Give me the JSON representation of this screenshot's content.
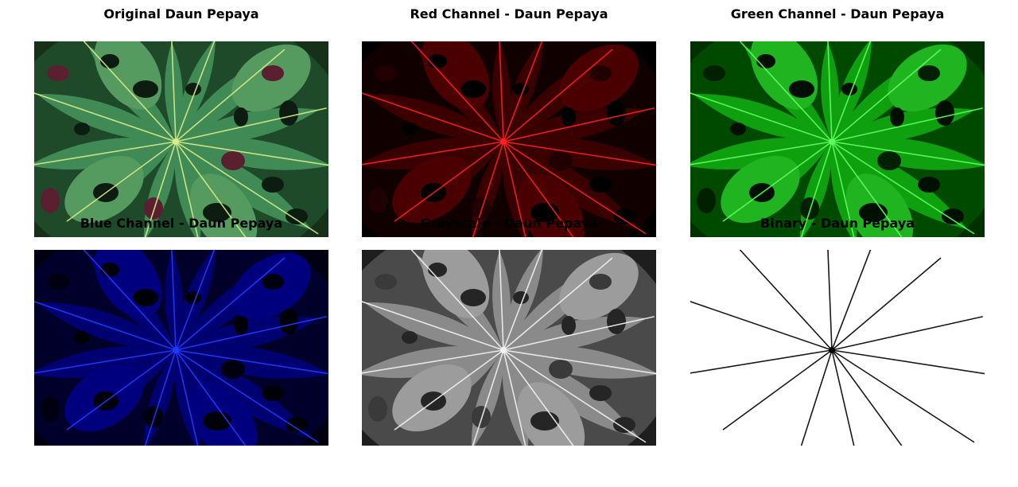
{
  "panels": [
    {
      "title": "Original Daun Pepaya",
      "mode": "original"
    },
    {
      "title": "Red Channel - Daun Pepaya",
      "mode": "red"
    },
    {
      "title": "Green Channel - Daun Pepaya",
      "mode": "green"
    },
    {
      "title": "Blue Channel - Daun Pepaya",
      "mode": "blue"
    },
    {
      "title": "Grayscale - Daun Pepaya",
      "mode": "gray"
    },
    {
      "title": "Binary - Daun Pepaya",
      "mode": "binary"
    }
  ]
}
